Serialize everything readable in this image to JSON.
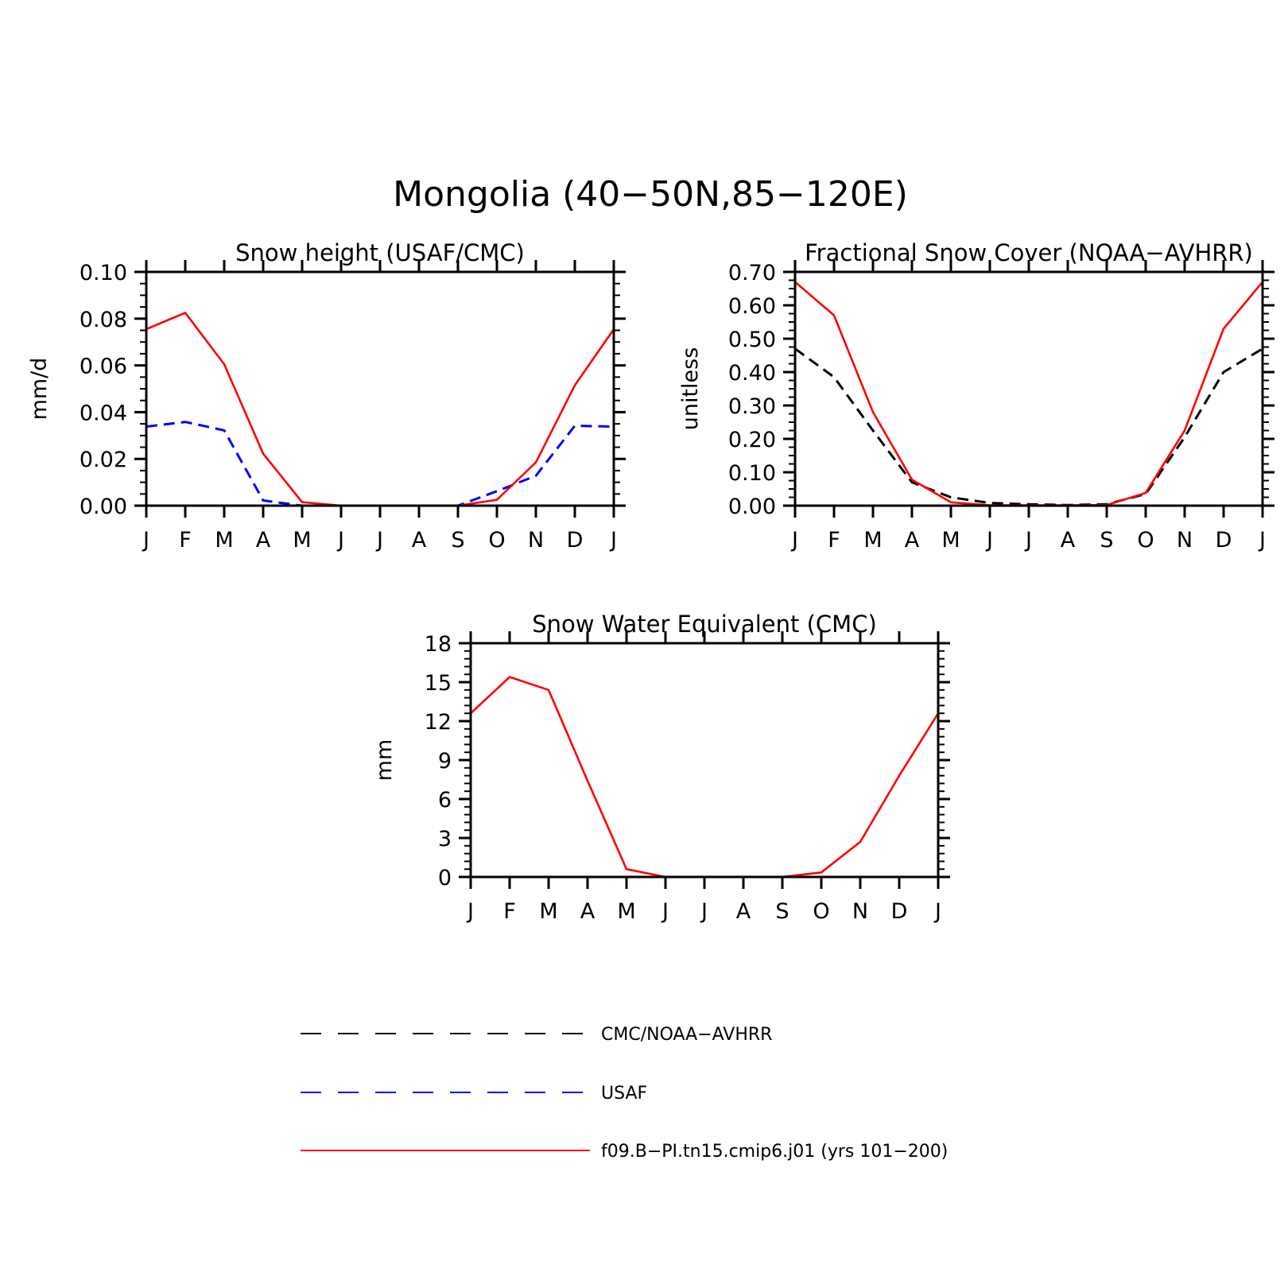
{
  "figure": {
    "title": "Mongolia (40−50N,85−120E)"
  },
  "chart_data": [
    {
      "type": "line",
      "title": "Snow height (USAF/CMC)",
      "xlabel": "",
      "ylabel": "mm/d",
      "categories": [
        "J",
        "F",
        "M",
        "A",
        "M",
        "J",
        "J",
        "A",
        "S",
        "O",
        "N",
        "D",
        "J"
      ],
      "ylim": [
        0,
        0.1
      ],
      "yticks": [
        "0.00",
        "0.02",
        "0.04",
        "0.06",
        "0.08",
        "0.10"
      ],
      "series": [
        {
          "name": "CMC/NOAA−AVHRR",
          "color": "#000000",
          "dash": true,
          "values": [
            0,
            0,
            0,
            0,
            0,
            0,
            0,
            0,
            0,
            0,
            0,
            0,
            0
          ]
        },
        {
          "name": "USAF",
          "color": "#0000ff",
          "dash": true,
          "values": [
            0.0338,
            0.0358,
            0.0322,
            0.0022,
            0.0,
            0.0,
            0.0,
            0.0,
            0.0,
            0.0062,
            0.0128,
            0.0342,
            0.0338
          ]
        },
        {
          "name": "f09.B−PI.tn15.cmip6.j01 (yrs 101−200)",
          "color": "#ff0000",
          "dash": false,
          "values": [
            0.0755,
            0.0825,
            0.0605,
            0.0222,
            0.0015,
            0.0,
            0.0,
            0.0,
            0.0,
            0.0025,
            0.0185,
            0.0515,
            0.0755
          ]
        }
      ]
    },
    {
      "type": "line",
      "title": "Fractional Snow Cover (NOAA−AVHRR)",
      "xlabel": "",
      "ylabel": "unitless",
      "categories": [
        "J",
        "F",
        "M",
        "A",
        "M",
        "J",
        "J",
        "A",
        "S",
        "O",
        "N",
        "D",
        "J"
      ],
      "ylim": [
        0,
        0.7
      ],
      "yticks": [
        "0.00",
        "0.10",
        "0.20",
        "0.30",
        "0.40",
        "0.50",
        "0.60",
        "0.70"
      ],
      "series": [
        {
          "name": "CMC/NOAA−AVHRR",
          "color": "#000000",
          "dash": true,
          "values": [
            0.47,
            0.385,
            0.225,
            0.07,
            0.025,
            0.008,
            0.004,
            0.002,
            0.004,
            0.035,
            0.205,
            0.4,
            0.47
          ]
        },
        {
          "name": "f09.B−PI.tn15.cmip6.j01 (yrs 101−200)",
          "color": "#ff0000",
          "dash": false,
          "values": [
            0.67,
            0.57,
            0.28,
            0.078,
            0.01,
            0.001,
            0.001,
            0.001,
            0.002,
            0.038,
            0.225,
            0.53,
            0.67
          ]
        }
      ]
    },
    {
      "type": "line",
      "title": "Snow Water Equivalent (CMC)",
      "xlabel": "",
      "ylabel": "mm",
      "categories": [
        "J",
        "F",
        "M",
        "A",
        "M",
        "J",
        "J",
        "A",
        "S",
        "O",
        "N",
        "D",
        "J"
      ],
      "ylim": [
        0,
        18
      ],
      "yticks": [
        "0",
        "3",
        "6",
        "9",
        "12",
        "15",
        "18"
      ],
      "series": [
        {
          "name": "CMC/NOAA−AVHRR",
          "color": "#000000",
          "dash": true,
          "values": [
            0,
            0,
            0,
            0,
            0,
            0,
            0,
            0,
            0,
            0,
            0,
            0,
            0
          ]
        },
        {
          "name": "f09.B−PI.tn15.cmip6.j01 (yrs 101−200)",
          "color": "#ff0000",
          "dash": false,
          "values": [
            12.6,
            15.4,
            14.4,
            7.4,
            0.6,
            0.0,
            0.0,
            0.0,
            0.0,
            0.35,
            2.7,
            7.8,
            12.6
          ]
        }
      ]
    }
  ],
  "legend": [
    {
      "label": "CMC/NOAA−AVHRR",
      "color": "#000000",
      "dash": true
    },
    {
      "label": "USAF",
      "color": "#0000ff",
      "dash": true
    },
    {
      "label": "f09.B−PI.tn15.cmip6.j01 (yrs 101−200)",
      "color": "#ff0000",
      "dash": false
    }
  ]
}
